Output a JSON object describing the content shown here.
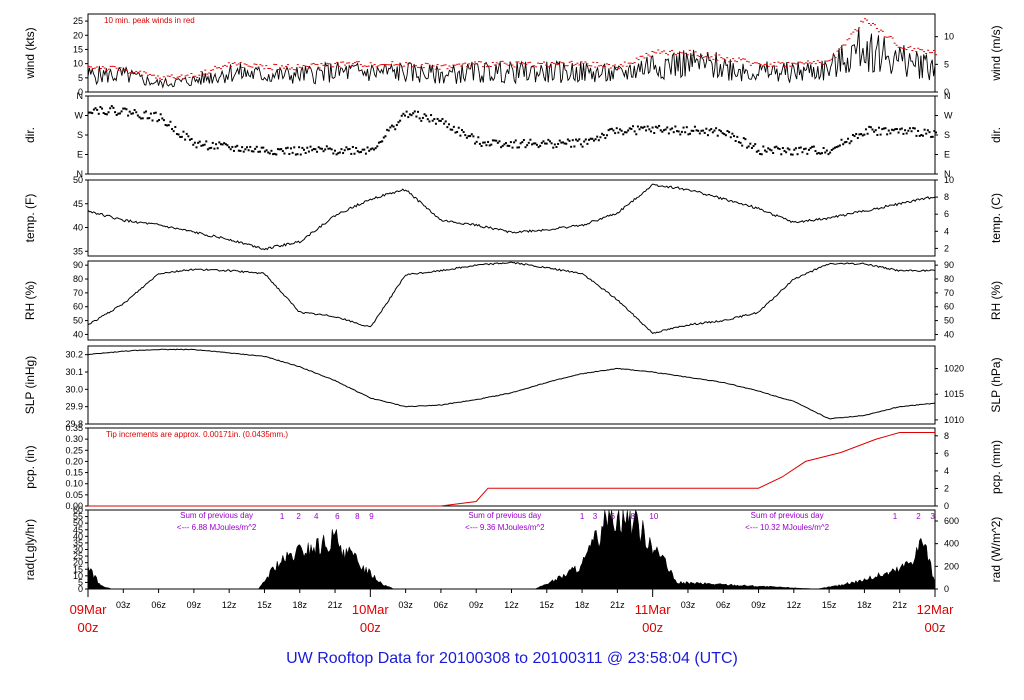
{
  "footer_title": "UW Rooftop Data for 20100308  to  20100311 @ 23:58:04  (UTC)",
  "colors": {
    "series": "#000000",
    "peak": "#dd0000",
    "precip": "#dd0000",
    "annotation": "#dd0000",
    "radnote": "#9900cc",
    "date": "#dd0000",
    "footer": "#1a1adb"
  },
  "chart_data": [
    {
      "type": "line",
      "ylabel_left": "wind (kts)",
      "ylabel_right": "wind (m/s)",
      "ylim": [
        0,
        27.5
      ],
      "yticks": [
        0,
        5,
        10,
        15,
        20,
        25
      ],
      "right_ylim": [
        0,
        14.1
      ],
      "right_yticks": [
        0,
        5,
        10
      ],
      "annotation": "10 min. peak winds in red",
      "x_hours": [
        0,
        3,
        6,
        9,
        12,
        15,
        18,
        21,
        24,
        27,
        30,
        33,
        36,
        39,
        42,
        45,
        48,
        51,
        54,
        57,
        60,
        63,
        66,
        69,
        72
      ],
      "values": [
        6,
        6,
        3,
        4,
        7,
        6,
        6,
        7,
        7,
        7,
        6,
        7,
        7,
        7,
        7,
        6,
        10,
        10,
        9,
        7,
        7,
        8,
        16,
        11,
        9
      ],
      "peak_values": [
        9,
        8,
        5,
        6,
        10,
        9,
        9,
        10,
        10,
        10,
        9,
        10,
        10,
        10,
        10,
        9,
        14,
        14,
        12,
        10,
        10,
        11,
        26,
        16,
        14
      ]
    },
    {
      "type": "scatter",
      "ylabel_left": "dir.",
      "ylabel_right": "dir.",
      "ytick_labels": [
        "N",
        "E",
        "S",
        "W",
        "N"
      ],
      "x_hours": [
        0,
        3,
        6,
        9,
        12,
        15,
        18,
        21,
        24,
        27,
        30,
        33,
        36,
        39,
        42,
        45,
        48,
        51,
        54,
        57,
        60,
        63,
        66,
        69,
        72
      ],
      "values": [
        300,
        290,
        260,
        140,
        120,
        110,
        105,
        110,
        112,
        280,
        240,
        150,
        140,
        140,
        145,
        200,
        205,
        200,
        190,
        110,
        105,
        110,
        200,
        195,
        190
      ]
    },
    {
      "type": "line",
      "ylabel_left": "temp. (F)",
      "ylabel_right": "temp. (C)",
      "ylim": [
        34,
        50
      ],
      "yticks": [
        35,
        40,
        45,
        50
      ],
      "right_ylim": [
        1.11,
        10
      ],
      "right_yticks": [
        2,
        4,
        6,
        8,
        10
      ],
      "x_hours": [
        0,
        3,
        6,
        9,
        12,
        15,
        18,
        21,
        24,
        27,
        30,
        33,
        36,
        39,
        42,
        45,
        48,
        51,
        54,
        57,
        60,
        63,
        66,
        69,
        72
      ],
      "values": [
        43.5,
        41.5,
        40.5,
        39,
        37.5,
        35.5,
        37,
        42.5,
        46,
        48,
        41.5,
        40.5,
        39,
        39.5,
        40.5,
        43,
        49,
        48,
        46,
        44,
        41,
        42,
        43.5,
        45,
        46.5
      ]
    },
    {
      "type": "line",
      "ylabel_left": "RH (%)",
      "ylabel_right": "RH (%)",
      "ylim": [
        36,
        93
      ],
      "yticks": [
        40,
        50,
        60,
        70,
        80,
        90
      ],
      "right_ylim": [
        36,
        93
      ],
      "right_yticks": [
        40,
        50,
        60,
        70,
        80,
        90
      ],
      "x_hours": [
        0,
        3,
        6,
        9,
        12,
        15,
        18,
        21,
        24,
        27,
        30,
        33,
        36,
        39,
        42,
        45,
        48,
        51,
        54,
        57,
        60,
        63,
        66,
        69,
        72
      ],
      "values": [
        47,
        62,
        84,
        87,
        86,
        84,
        56,
        53,
        45,
        83,
        86,
        90,
        92,
        88,
        84,
        65,
        41,
        47,
        50,
        56,
        80,
        91,
        91,
        86,
        86
      ]
    },
    {
      "type": "line",
      "ylabel_left": "SLP (inHg)",
      "ylabel_right": "SLP (hPa)",
      "ylim": [
        29.8,
        30.25
      ],
      "yticks": [
        29.8,
        29.9,
        30.0,
        30.1,
        30.2
      ],
      "right_ylim": [
        1009.2,
        1024.4
      ],
      "right_yticks": [
        1010,
        1015,
        1020
      ],
      "x_hours": [
        0,
        3,
        6,
        9,
        12,
        15,
        18,
        21,
        24,
        27,
        30,
        33,
        36,
        39,
        42,
        45,
        48,
        51,
        54,
        57,
        60,
        63,
        66,
        69,
        72
      ],
      "values": [
        30.2,
        30.22,
        30.23,
        30.23,
        30.21,
        30.19,
        30.13,
        30.05,
        29.95,
        29.9,
        29.91,
        29.94,
        29.98,
        30.04,
        30.09,
        30.12,
        30.1,
        30.07,
        30.04,
        29.99,
        29.93,
        29.83,
        29.85,
        29.9,
        29.92
      ]
    },
    {
      "type": "area",
      "ylabel_left": "pcp. (in)",
      "ylabel_right": "pcp. (mm)",
      "ylim": [
        0,
        0.35
      ],
      "yticks": [
        0,
        0.05,
        0.1,
        0.15,
        0.2,
        0.25,
        0.3,
        0.35
      ],
      "right_ylim": [
        0,
        8.89
      ],
      "right_yticks": [
        0,
        2,
        4,
        6,
        8
      ],
      "annotation": "Tip increments are approx. 0.00171in. (0.0435mm.)",
      "x_hours": [
        0,
        30,
        33,
        34,
        36,
        48,
        57,
        59,
        61,
        64,
        67,
        69,
        72
      ],
      "values": [
        0,
        0,
        0.02,
        0.08,
        0.08,
        0.08,
        0.08,
        0.13,
        0.2,
        0.24,
        0.3,
        0.33,
        0.33
      ]
    },
    {
      "type": "area",
      "ylabel_left": "rad(Lgly/hr)",
      "ylabel_right": "rad (W/m^2)",
      "ylim": [
        0,
        60
      ],
      "yticks": [
        0,
        5,
        10,
        15,
        20,
        25,
        30,
        35,
        40,
        45,
        50,
        55,
        60
      ],
      "right_ylim": [
        0,
        697
      ],
      "right_yticks": [
        0,
        200,
        400,
        600
      ],
      "x_hours": [
        0,
        1,
        2,
        14.5,
        16,
        18,
        20,
        21,
        22,
        24,
        25,
        26,
        38,
        40,
        42,
        43.5,
        44,
        45,
        46,
        48,
        50,
        62,
        64,
        66,
        68,
        69,
        70,
        71,
        72
      ],
      "values": [
        18,
        3,
        0,
        0,
        18,
        28,
        33,
        38,
        28,
        12,
        4,
        0,
        0,
        8,
        18,
        42,
        60,
        57,
        55,
        35,
        5,
        0,
        3,
        7,
        12,
        15,
        22,
        38,
        5
      ],
      "notes": [
        {
          "title": "Sum of previous day",
          "value": "<--- 6.88 MJoules/m^2",
          "hour": 6,
          "hours_digits": [
            "1",
            "2",
            "4",
            "6",
            "8",
            "9"
          ],
          "digit_hours": [
            16.5,
            17.9,
            19.4,
            21.2,
            22.9,
            24.1
          ]
        },
        {
          "title": "Sum of previous day",
          "value": "<--- 9.36 MJoules/m^2",
          "hour": 30.5,
          "hours_digits": [
            "1",
            "3",
            "6",
            "8",
            "10"
          ],
          "digit_hours": [
            42,
            43.1,
            44.6,
            46.3,
            48.1
          ]
        },
        {
          "title": "Sum of previous day",
          "value": "<--- 10.32 MJoules/m^2",
          "hour": 54.5,
          "hours_digits": [
            "1",
            "2",
            "3"
          ],
          "digit_hours": [
            68.6,
            70.6,
            71.8
          ]
        }
      ]
    }
  ],
  "x_axis": {
    "tick_labels": [
      "03z",
      "06z",
      "09z",
      "12z",
      "15z",
      "18z",
      "21z",
      "03z",
      "06z",
      "09z",
      "12z",
      "15z",
      "18z",
      "21z",
      "03z",
      "06z",
      "09z",
      "12z",
      "15z",
      "18z",
      "21z"
    ],
    "tick_hours": [
      3,
      6,
      9,
      12,
      15,
      18,
      21,
      27,
      30,
      33,
      36,
      39,
      42,
      45,
      51,
      54,
      57,
      60,
      63,
      66,
      69
    ],
    "date_labels": [
      {
        "date": "09Mar",
        "time": "00z",
        "hour": 0
      },
      {
        "date": "10Mar",
        "time": "00z",
        "hour": 24
      },
      {
        "date": "11Mar",
        "time": "00z",
        "hour": 48
      },
      {
        "date": "12Mar",
        "time": "00z",
        "hour": 72
      }
    ]
  }
}
